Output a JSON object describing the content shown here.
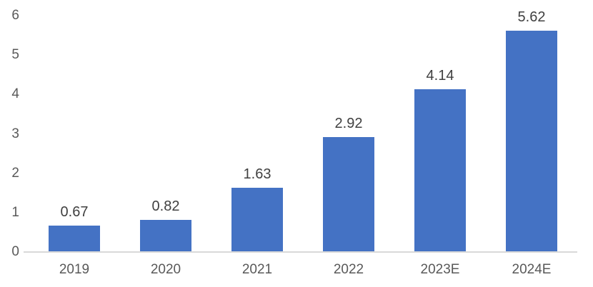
{
  "chart_data": {
    "type": "bar",
    "title": "",
    "xlabel": "",
    "ylabel": "",
    "categories": [
      "2019",
      "2020",
      "2021",
      "2022",
      "2023E",
      "2024E"
    ],
    "values": [
      0.67,
      0.82,
      1.63,
      2.92,
      4.14,
      5.62
    ],
    "data_labels": [
      "0.67",
      "0.82",
      "1.63",
      "2.92",
      "4.14",
      "5.62"
    ],
    "ylim": [
      0,
      6
    ],
    "yticks": [
      "0",
      "1",
      "2",
      "3",
      "4",
      "5",
      "6"
    ],
    "grid": "off",
    "legend": "none",
    "colors": {
      "bar": "#4472c4",
      "axis_line": "#d9d9d9",
      "axis_label": "#595959",
      "data_label": "#404040",
      "background": "#ffffff"
    }
  }
}
